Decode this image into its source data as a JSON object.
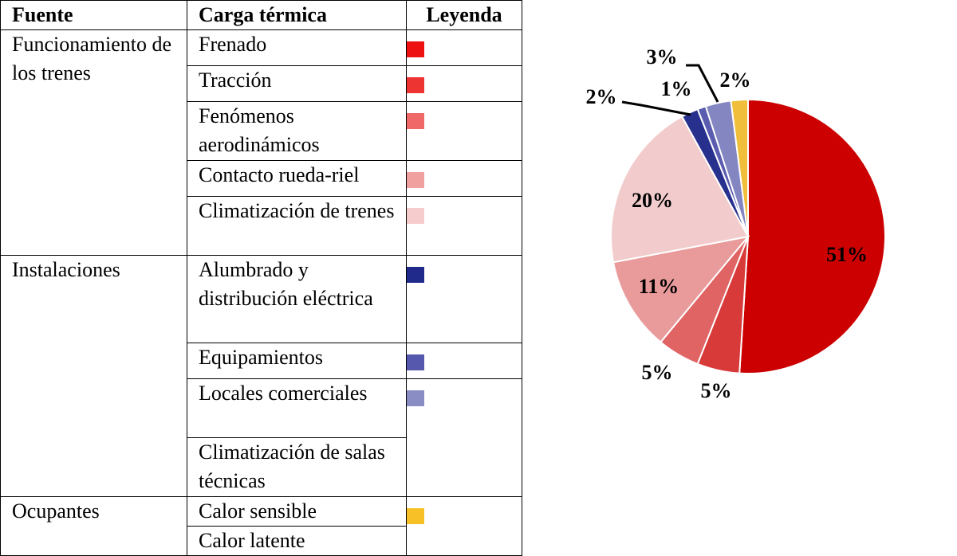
{
  "table": {
    "headers": {
      "fuente": "Fuente",
      "carga": "Carga térmica",
      "leyenda": "Leyenda"
    },
    "groups": [
      {
        "fuente": "Funcionamiento de los trenes",
        "rows": [
          {
            "label": "Frenado",
            "color": "#ee1111"
          },
          {
            "label": "Tracción",
            "color": "#ee3333"
          },
          {
            "label": "Fenómenos aerodinámicos",
            "color": "#f06868"
          },
          {
            "label": "Contacto rueda-riel",
            "color": "#f1a0a0"
          },
          {
            "label": "Climatización de trenes",
            "color": "#f7cccc"
          }
        ]
      },
      {
        "fuente": "Instalaciones",
        "rows": [
          {
            "label": "Alumbrado y distribución eléctrica",
            "color": "#1f2a8a"
          },
          {
            "label": "Equipamientos",
            "color": "#5558ad"
          },
          {
            "label": "Locales comerciales",
            "color": "#8a8cc4"
          },
          {
            "label": "Climatización de salas técnicas",
            "color": null
          }
        ]
      },
      {
        "fuente": "Ocupantes",
        "rows": [
          {
            "label": "Calor sensible",
            "color": "#f7c027"
          },
          {
            "label": "Calor latente",
            "color": null
          }
        ]
      }
    ]
  },
  "chart_data": {
    "type": "pie",
    "title": "",
    "start": "12 o'clock",
    "direction": "clockwise",
    "slices": [
      {
        "label": "Frenado",
        "value": 51,
        "text": "51%",
        "color": "#cc0000"
      },
      {
        "label": "Tracción",
        "value": 5,
        "text": "5%",
        "color": "#d83a3a"
      },
      {
        "label": "Fenómenos aerodinámicos",
        "value": 5,
        "text": "5%",
        "color": "#e06464"
      },
      {
        "label": "Contacto rueda-riel",
        "value": 11,
        "text": "11%",
        "color": "#e99a9a"
      },
      {
        "label": "Climatización de trenes",
        "value": 20,
        "text": "20%",
        "color": "#f2cccc"
      },
      {
        "label": "Alumbrado y distribución eléctrica",
        "value": 2,
        "text": "2%",
        "color": "#28308e"
      },
      {
        "label": "Equipamientos",
        "value": 1,
        "text": "1%",
        "color": "#5a5cb0"
      },
      {
        "label": "Locales comerciales y climatización de salas técnicas",
        "value": 3,
        "text": "3%",
        "color": "#8486c2"
      },
      {
        "label": "Ocupantes",
        "value": 2,
        "text": "2%",
        "color": "#f0be3a"
      }
    ]
  }
}
